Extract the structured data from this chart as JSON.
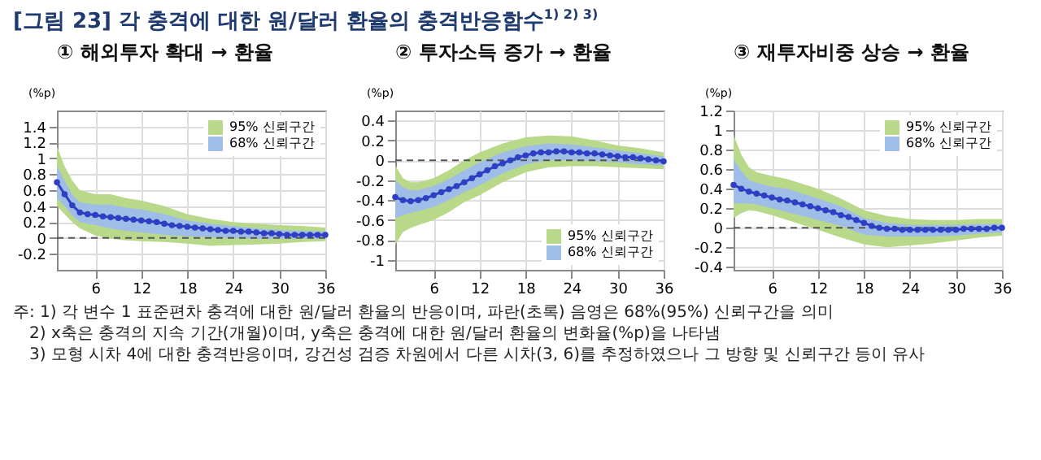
{
  "chart_data": [
    {
      "type": "line",
      "title": "① 해외투자 확대 → 환율",
      "ylabel": "(%p)",
      "xlim": [
        1,
        36
      ],
      "xticks": [
        6,
        12,
        18,
        24,
        30,
        36
      ],
      "ylim": [
        -0.4,
        1.6
      ],
      "yticks": [
        -0.2,
        0,
        0.2,
        0.4,
        0.6,
        0.8,
        1,
        1.2,
        1.4
      ],
      "grid": true,
      "legend": "top right",
      "annotations": [
        "[그림 23] 각 충격에 대한 원/달러 환율의 충격반응함수$^{1) 2) 3)}$"
      ],
      "ref_lines": [
        {
          "axis": "y",
          "value": 0,
          "color": "#555555",
          "line_style": "dashed"
        }
      ],
      "series": [
        {
          "name": "95% 신뢰구간",
          "type": "area",
          "color": "#b9d98a",
          "x": [
            1,
            2,
            3,
            4,
            6,
            8,
            10,
            12,
            15,
            18,
            21,
            24,
            27,
            30,
            33,
            36
          ],
          "values": [
            null,
            null,
            null,
            null,
            null,
            null,
            null,
            null,
            null,
            null,
            null,
            null,
            null,
            null,
            null,
            null
          ],
          "lower": [
            0.4,
            0.3,
            0.2,
            0.12,
            0.03,
            -0.01,
            -0.03,
            -0.04,
            -0.05,
            -0.07,
            -0.1,
            -0.09,
            -0.08,
            -0.07,
            -0.05,
            -0.04
          ],
          "upper": [
            1.15,
            0.9,
            0.72,
            0.6,
            0.55,
            0.55,
            0.5,
            0.47,
            0.4,
            0.3,
            0.24,
            0.2,
            0.18,
            0.16,
            0.15,
            0.13
          ]
        },
        {
          "name": "68% 신뢰구간",
          "type": "area",
          "color": "#9fbde6",
          "x": [
            1,
            2,
            3,
            4,
            6,
            8,
            10,
            12,
            15,
            18,
            21,
            24,
            27,
            30,
            33,
            36
          ],
          "values": [
            null,
            null,
            null,
            null,
            null,
            null,
            null,
            null,
            null,
            null,
            null,
            null,
            null,
            null,
            null,
            null
          ],
          "lower": [
            0.5,
            0.4,
            0.28,
            0.2,
            0.16,
            0.12,
            0.09,
            0.07,
            0.04,
            0.02,
            0.01,
            0,
            -0.01,
            -0.01,
            -0.01,
            -0.01
          ],
          "upper": [
            0.9,
            0.72,
            0.55,
            0.45,
            0.42,
            0.42,
            0.38,
            0.36,
            0.3,
            0.22,
            0.18,
            0.15,
            0.12,
            0.1,
            0.09,
            0.08
          ]
        },
        {
          "type": "line",
          "color": "#2f3fc4",
          "marker": "circle",
          "x": [
            1,
            2,
            3,
            4,
            5,
            6,
            7,
            8,
            9,
            10,
            11,
            12,
            13,
            14,
            15,
            16,
            17,
            18,
            19,
            20,
            21,
            22,
            23,
            24,
            25,
            26,
            27,
            28,
            29,
            30,
            31,
            32,
            33,
            34,
            35,
            36
          ],
          "values": [
            0.7,
            0.55,
            0.41,
            0.32,
            0.3,
            0.29,
            0.27,
            0.26,
            0.25,
            0.24,
            0.23,
            0.22,
            0.21,
            0.2,
            0.18,
            0.16,
            0.15,
            0.14,
            0.13,
            0.12,
            0.11,
            0.1,
            0.09,
            0.09,
            0.08,
            0.08,
            0.07,
            0.06,
            0.06,
            0.05,
            0.04,
            0.04,
            0.04,
            0.04,
            0.04,
            0.04
          ]
        }
      ]
    },
    {
      "type": "line",
      "title": "② 투자소득 증가 → 환율",
      "ylabel": "(%p)",
      "xlim": [
        1,
        36
      ],
      "xticks": [
        6,
        12,
        18,
        24,
        30,
        36
      ],
      "ylim": [
        -1.1,
        0.5
      ],
      "yticks": [
        -1,
        -0.8,
        -0.6,
        -0.4,
        -0.2,
        0,
        0.2,
        0.4
      ],
      "grid": true,
      "legend": "bottom right",
      "ref_lines": [
        {
          "axis": "y",
          "value": 0,
          "color": "#555555",
          "line_style": "dashed"
        }
      ],
      "series": [
        {
          "name": "95% 신뢰구간",
          "type": "area",
          "color": "#b9d98a",
          "x": [
            1,
            2,
            3,
            4,
            6,
            8,
            10,
            12,
            15,
            18,
            21,
            24,
            27,
            30,
            33,
            36
          ],
          "values": [
            null,
            null,
            null,
            null,
            null,
            null,
            null,
            null,
            null,
            null,
            null,
            null,
            null,
            null,
            null,
            null
          ],
          "lower": [
            -0.85,
            -0.72,
            -0.68,
            -0.65,
            -0.6,
            -0.52,
            -0.42,
            -0.35,
            -0.22,
            -0.12,
            -0.07,
            -0.06,
            -0.06,
            -0.07,
            -0.08,
            -0.09
          ],
          "upper": [
            -0.05,
            -0.18,
            -0.22,
            -0.22,
            -0.18,
            -0.1,
            0,
            0.08,
            0.17,
            0.23,
            0.25,
            0.24,
            0.2,
            0.15,
            0.12,
            0.08
          ]
        },
        {
          "name": "68% 신뢰구간",
          "type": "area",
          "color": "#9fbde6",
          "x": [
            1,
            2,
            3,
            4,
            6,
            8,
            10,
            12,
            15,
            18,
            21,
            24,
            27,
            30,
            33,
            36
          ],
          "values": [
            null,
            null,
            null,
            null,
            null,
            null,
            null,
            null,
            null,
            null,
            null,
            null,
            null,
            null,
            null,
            null
          ],
          "lower": [
            -0.58,
            -0.55,
            -0.53,
            -0.51,
            -0.47,
            -0.4,
            -0.32,
            -0.25,
            -0.13,
            -0.04,
            0,
            0,
            -0.01,
            -0.02,
            -0.04,
            -0.05
          ],
          "upper": [
            -0.2,
            -0.27,
            -0.3,
            -0.3,
            -0.26,
            -0.19,
            -0.1,
            -0.02,
            0.08,
            0.14,
            0.17,
            0.16,
            0.13,
            0.1,
            0.07,
            0.04
          ]
        },
        {
          "type": "line",
          "color": "#2f3fc4",
          "marker": "circle",
          "x": [
            1,
            2,
            3,
            4,
            5,
            6,
            7,
            8,
            9,
            10,
            11,
            12,
            13,
            14,
            15,
            16,
            17,
            18,
            19,
            20,
            21,
            22,
            23,
            24,
            25,
            26,
            27,
            28,
            29,
            30,
            31,
            32,
            33,
            34,
            35,
            36
          ],
          "values": [
            -0.37,
            -0.4,
            -0.41,
            -0.4,
            -0.38,
            -0.35,
            -0.32,
            -0.29,
            -0.26,
            -0.22,
            -0.18,
            -0.14,
            -0.1,
            -0.06,
            -0.03,
            0,
            0.03,
            0.05,
            0.07,
            0.08,
            0.08,
            0.09,
            0.09,
            0.08,
            0.08,
            0.07,
            0.07,
            0.06,
            0.05,
            0.04,
            0.03,
            0.03,
            0.02,
            0.01,
            0,
            -0.01
          ]
        }
      ]
    },
    {
      "type": "line",
      "title": "③ 재투자비중 상승 → 환율",
      "ylabel": "(%p)",
      "xlim": [
        1,
        36
      ],
      "xticks": [
        6,
        12,
        18,
        24,
        30,
        36
      ],
      "ylim": [
        -0.43,
        1.2
      ],
      "yticks": [
        -0.4,
        -0.2,
        0,
        0.2,
        0.4,
        0.6,
        0.8,
        1,
        1.2
      ],
      "grid": true,
      "legend": "top right",
      "annotations": [
        "주: 1) 각 변수 1 표준편차 충격에 대한 원/달러 환율의 반응이며, 파란(초록) 음영은 68%(95%) 신뢰구간을 의미",
        "2) x축은 충격의 지속 기간(개월)이며, y축은 충격에 대한 원/달러 환율의 변화율(%p)을 나타냄",
        "3) 모형 시차 4에 대한 충격반응이며, 강건성 검증 차원에서 다른 시차(3, 6)를 추정하였으나 그 방향 및 신뢰구간 등이 유사"
      ],
      "ref_lines": [
        {
          "axis": "y",
          "value": 0,
          "color": "#555555",
          "line_style": "dashed"
        }
      ],
      "series": [
        {
          "name": "95% 신뢰구간",
          "type": "area",
          "color": "#b9d98a",
          "x": [
            1,
            2,
            3,
            4,
            6,
            8,
            10,
            12,
            15,
            18,
            21,
            24,
            27,
            30,
            33,
            36
          ],
          "values": [
            null,
            null,
            null,
            null,
            null,
            null,
            null,
            null,
            null,
            null,
            null,
            null,
            null,
            null,
            null,
            null
          ],
          "lower": [
            0.1,
            0.15,
            0.18,
            0.17,
            0.13,
            0.08,
            0.03,
            -0.02,
            -0.1,
            -0.17,
            -0.2,
            -0.18,
            -0.16,
            -0.13,
            -0.1,
            -0.08
          ],
          "upper": [
            0.95,
            0.75,
            0.62,
            0.57,
            0.53,
            0.5,
            0.45,
            0.4,
            0.3,
            0.18,
            0.12,
            0.09,
            0.08,
            0.08,
            0.09,
            0.09
          ]
        },
        {
          "name": "68% 신뢰구간",
          "type": "area",
          "color": "#9fbde6",
          "x": [
            1,
            2,
            3,
            4,
            6,
            8,
            10,
            12,
            15,
            18,
            21,
            24,
            27,
            30,
            33,
            36
          ],
          "values": [
            null,
            null,
            null,
            null,
            null,
            null,
            null,
            null,
            null,
            null,
            null,
            null,
            null,
            null,
            null,
            null
          ],
          "lower": [
            0.25,
            0.25,
            0.25,
            0.24,
            0.2,
            0.16,
            0.12,
            0.08,
            0.02,
            -0.07,
            -0.09,
            -0.09,
            -0.09,
            -0.08,
            -0.06,
            -0.05
          ],
          "upper": [
            0.7,
            0.58,
            0.49,
            0.46,
            0.42,
            0.4,
            0.35,
            0.3,
            0.22,
            0.1,
            0.05,
            0.03,
            0.03,
            0.03,
            0.04,
            0.04
          ]
        },
        {
          "type": "line",
          "color": "#2f3fc4",
          "marker": "circle",
          "x": [
            1,
            2,
            3,
            4,
            5,
            6,
            7,
            8,
            9,
            10,
            11,
            12,
            13,
            14,
            15,
            16,
            17,
            18,
            19,
            20,
            21,
            22,
            23,
            24,
            25,
            26,
            27,
            28,
            29,
            30,
            31,
            32,
            33,
            34,
            35,
            36
          ],
          "values": [
            0.44,
            0.4,
            0.37,
            0.35,
            0.33,
            0.31,
            0.29,
            0.28,
            0.26,
            0.24,
            0.22,
            0.2,
            0.18,
            0.16,
            0.13,
            0.11,
            0.08,
            0.05,
            0.02,
            0,
            -0.01,
            -0.01,
            -0.02,
            -0.02,
            -0.02,
            -0.02,
            -0.02,
            -0.02,
            -0.02,
            -0.02,
            -0.01,
            -0.01,
            -0.01,
            -0.01,
            0,
            0
          ]
        }
      ]
    }
  ]
}
